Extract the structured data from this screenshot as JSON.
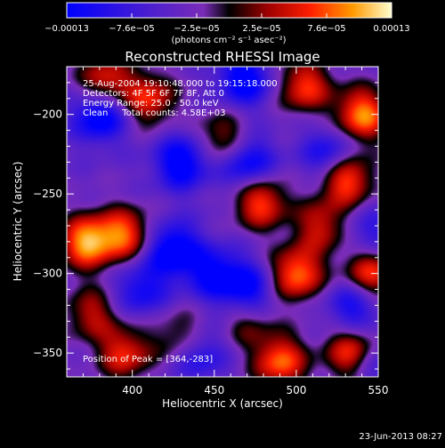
{
  "chart_data": {
    "type": "heatmap",
    "title": "Reconstructed RHESSI Image",
    "xlabel": "Heliocentric X (arcsec)",
    "ylabel": "Heliocentric Y (arcsec)",
    "xlim": [
      360,
      550
    ],
    "ylim": [
      -365,
      -170
    ],
    "x_ticks": [
      400,
      450,
      500,
      550
    ],
    "y_ticks": [
      -200,
      -250,
      -300,
      -350
    ],
    "x_tick_labels": [
      "400",
      "450",
      "500",
      "550"
    ],
    "y_tick_labels": [
      "−200",
      "−250",
      "−300",
      "−350"
    ],
    "colorbar": {
      "min": -0.00013,
      "max": 0.00013,
      "tick_labels": [
        "−0.00013",
        "−7.6e−05",
        "−2.5e−05",
        "2.5e−05",
        "7.6e−05",
        "0.00013"
      ],
      "unit": "(photons cm⁻² s⁻¹ asec⁻²)"
    },
    "annotations": [
      "25-Aug-2004 19:10:48.000 to 19:15:18.000",
      "Detectors: 4F 5F 6F 7F 8F, Att 0",
      "Energy Range: 25.0 - 50.0 keV",
      "Clean     Total counts: 4.58E+03"
    ],
    "peak_label": "Position of Peak = [364,-283]",
    "peak": [
      364,
      -283
    ],
    "blobs": [
      {
        "x": 372,
        "y": -280,
        "v": 1.0
      },
      {
        "x": 395,
        "y": -275,
        "v": 0.8
      },
      {
        "x": 383,
        "y": -180,
        "v": 0.75
      },
      {
        "x": 410,
        "y": -190,
        "v": 0.7
      },
      {
        "x": 505,
        "y": -182,
        "v": 0.75
      },
      {
        "x": 540,
        "y": -200,
        "v": 0.95
      },
      {
        "x": 530,
        "y": -240,
        "v": 0.9
      },
      {
        "x": 478,
        "y": -255,
        "v": 0.8
      },
      {
        "x": 515,
        "y": -270,
        "v": 0.6
      },
      {
        "x": 500,
        "y": -300,
        "v": 0.9
      },
      {
        "x": 545,
        "y": -300,
        "v": 0.8
      },
      {
        "x": 455,
        "y": -215,
        "v": 0.55
      },
      {
        "x": 535,
        "y": -350,
        "v": 0.95
      },
      {
        "x": 490,
        "y": -355,
        "v": 0.85
      },
      {
        "x": 395,
        "y": -350,
        "v": 0.7
      },
      {
        "x": 430,
        "y": -340,
        "v": 0.5
      },
      {
        "x": 470,
        "y": -330,
        "v": 0.4
      },
      {
        "x": 375,
        "y": -325,
        "v": 0.55
      },
      {
        "x": 380,
        "y": -200,
        "v": -0.85
      },
      {
        "x": 430,
        "y": -230,
        "v": -0.8
      },
      {
        "x": 468,
        "y": -178,
        "v": -0.75
      },
      {
        "x": 470,
        "y": -230,
        "v": -0.7
      },
      {
        "x": 520,
        "y": -225,
        "v": -0.6
      },
      {
        "x": 425,
        "y": -285,
        "v": -0.85
      },
      {
        "x": 450,
        "y": -300,
        "v": -0.65
      },
      {
        "x": 470,
        "y": -310,
        "v": -0.7
      },
      {
        "x": 535,
        "y": -320,
        "v": -0.6
      },
      {
        "x": 440,
        "y": -350,
        "v": -0.55
      },
      {
        "x": 545,
        "y": -355,
        "v": -0.55
      },
      {
        "x": 405,
        "y": -310,
        "v": -0.55
      },
      {
        "x": 545,
        "y": -275,
        "v": -0.4
      }
    ]
  },
  "footer": {
    "date": "23-Jun-2013 08:27"
  }
}
